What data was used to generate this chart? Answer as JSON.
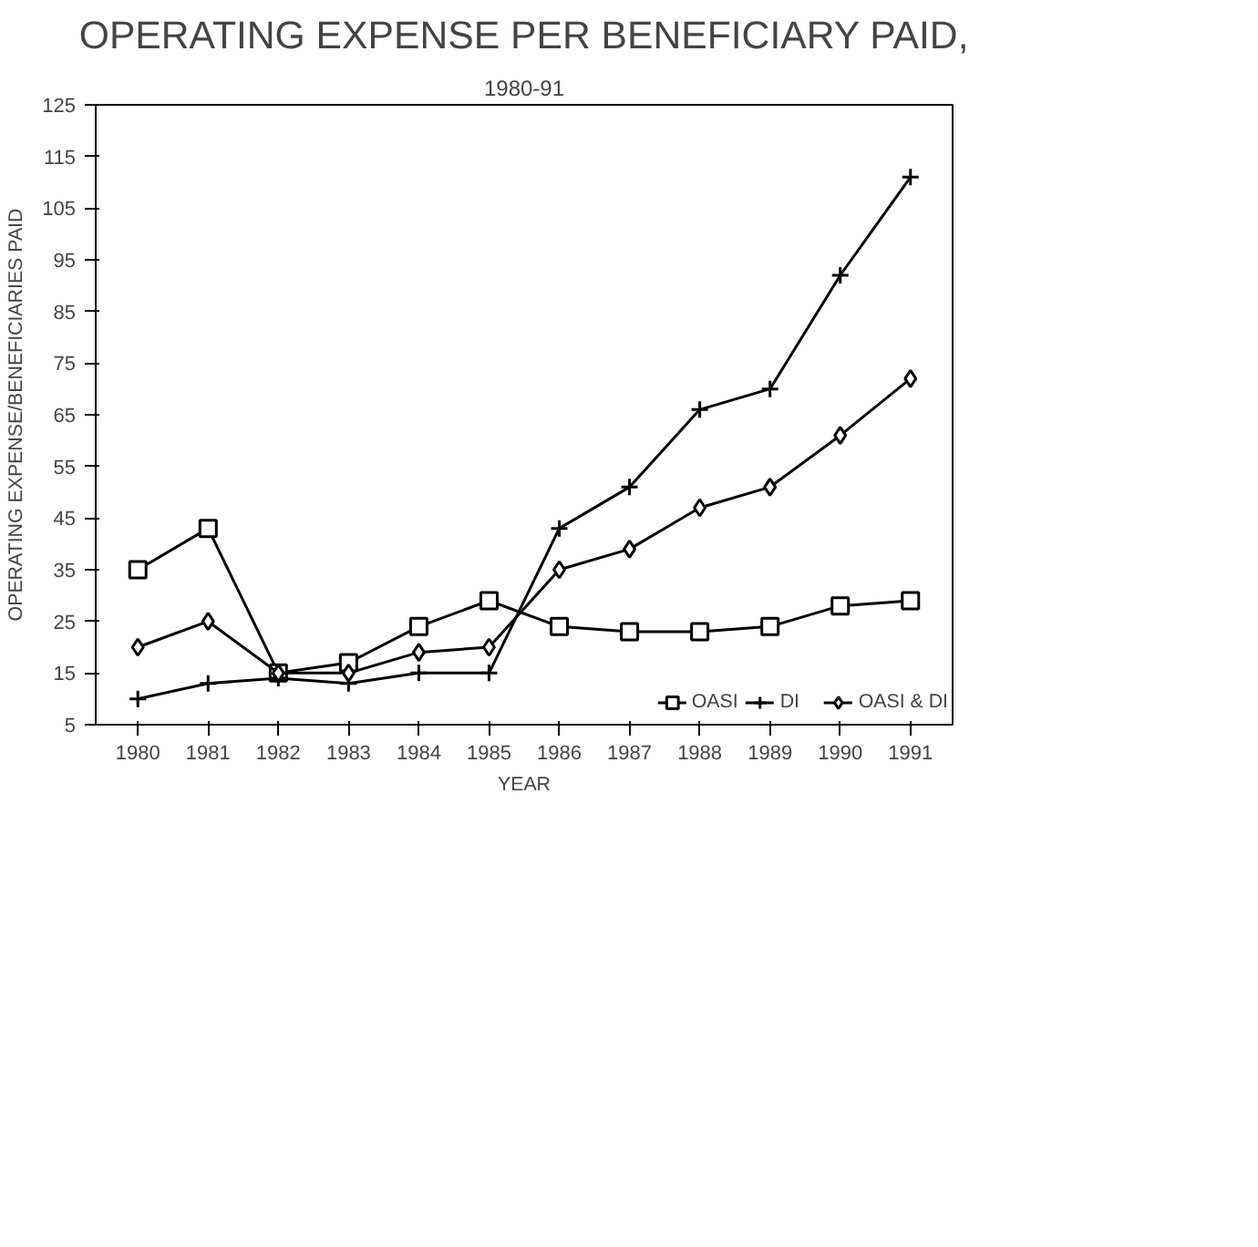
{
  "chart_data": {
    "type": "line",
    "title": "OPERATING EXPENSE PER BENEFICIARY PAID,",
    "subtitle": "1980-91",
    "xlabel": "YEAR",
    "ylabel": "OPERATING EXPENSE/BENEFICIARIES PAID",
    "categories": [
      "1980",
      "1981",
      "1982",
      "1983",
      "1984",
      "1985",
      "1986",
      "1987",
      "1988",
      "1989",
      "1990",
      "1991"
    ],
    "ylim": [
      5,
      125
    ],
    "yticks": [
      5,
      15,
      25,
      35,
      45,
      55,
      65,
      75,
      85,
      95,
      105,
      115,
      125
    ],
    "grid": false,
    "legend": "bottom right",
    "series": [
      {
        "name": "OASI",
        "color": "#000000",
        "marker": "square",
        "values": [
          35,
          43,
          15,
          17,
          24,
          29,
          24,
          23,
          23,
          24,
          28,
          29
        ]
      },
      {
        "name": "DI",
        "color": "#000000",
        "marker": "cross",
        "values": [
          10,
          13,
          14,
          13,
          15,
          15,
          43,
          51,
          66,
          70,
          92,
          111
        ]
      },
      {
        "name": "OASI & DI",
        "color": "#000000",
        "marker": "diamond",
        "values": [
          20,
          25,
          15,
          15,
          19,
          20,
          35,
          39,
          47,
          51,
          61,
          72
        ]
      }
    ]
  }
}
